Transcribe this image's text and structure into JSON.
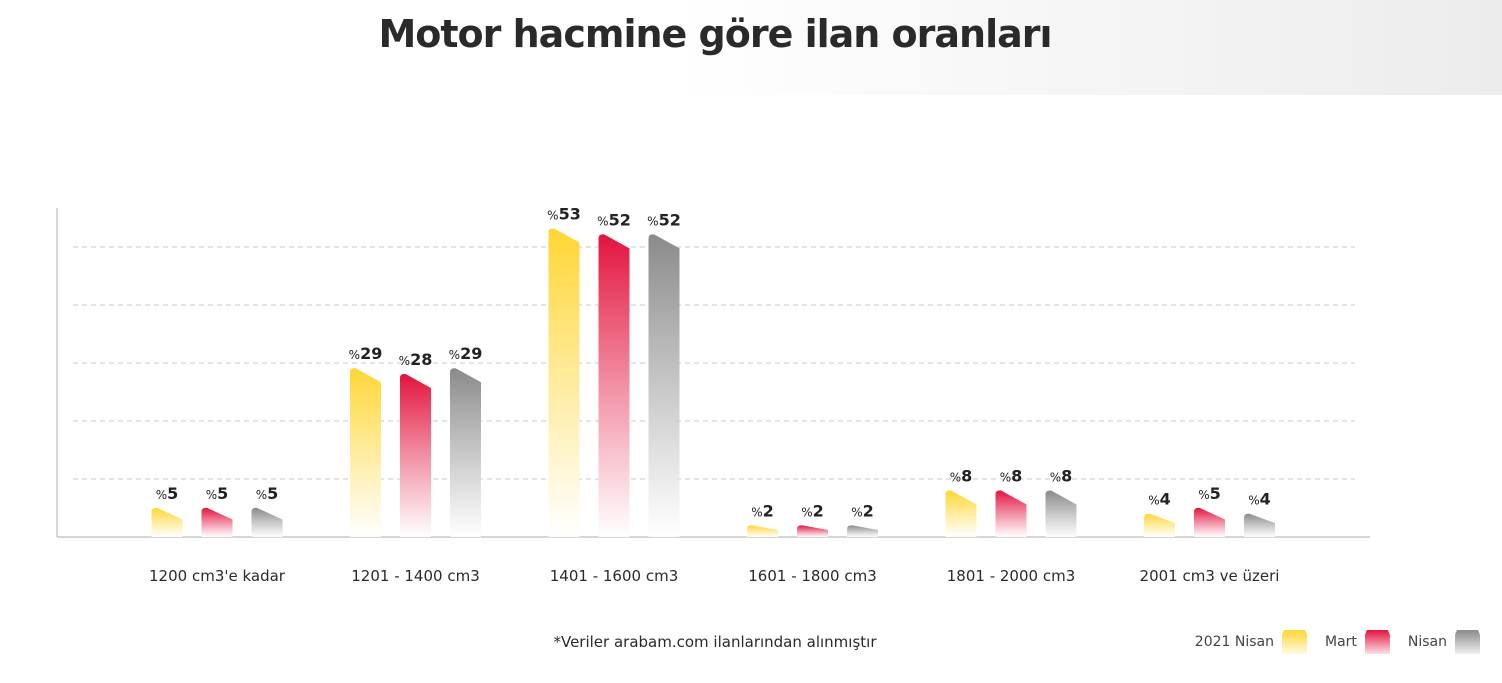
{
  "page": {
    "title": "Motor hacmine göre ilan oranları",
    "footnote": "*Veriler arabam.com ilanlarından alınmıştır"
  },
  "legend": [
    {
      "label": "2021 Nisan",
      "color": "#FFD633"
    },
    {
      "label": "Mart",
      "color": "#E3133E"
    },
    {
      "label": "Nisan",
      "color": "#8A8A8A"
    }
  ],
  "chart_data": {
    "type": "bar",
    "categories": [
      "1200 cm3'e kadar",
      "1201 - 1400 cm3",
      "1401 - 1600 cm3",
      "1601 - 1800 cm3",
      "1801 - 2000 cm3",
      "2001 cm3 ve üzeri"
    ],
    "series": [
      {
        "name": "2021 Nisan",
        "color": "#FFD633",
        "values": [
          5,
          29,
          53,
          2,
          8,
          4
        ]
      },
      {
        "name": "Mart",
        "color": "#E3133E",
        "values": [
          5,
          28,
          52,
          2,
          8,
          5
        ]
      },
      {
        "name": "Nisan",
        "color": "#8A8A8A",
        "values": [
          5,
          29,
          52,
          2,
          8,
          4
        ]
      }
    ],
    "value_prefix": "%",
    "ylim": [
      0,
      56
    ],
    "grid": true,
    "legend_position": "bottom-right"
  }
}
